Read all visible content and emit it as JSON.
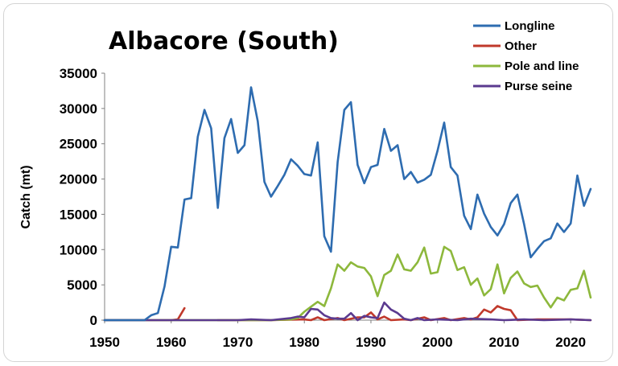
{
  "chart_data": {
    "type": "line",
    "title": "Albacore (South)",
    "xlabel": "",
    "ylabel": "Catch (mt)",
    "xlim": [
      1950,
      2023
    ],
    "ylim": [
      0,
      35000
    ],
    "x_ticks": [
      "1950",
      "1960",
      "1970",
      "1980",
      "1990",
      "2000",
      "2010",
      "2020"
    ],
    "y_ticks": [
      "0",
      "5000",
      "10000",
      "15000",
      "20000",
      "25000",
      "30000",
      "35000"
    ],
    "grid": false,
    "legend_position": "top-right",
    "series": [
      {
        "name": "Longline",
        "color": "#2e6cb0",
        "points": [
          [
            1950,
            0
          ],
          [
            1951,
            0
          ],
          [
            1952,
            0
          ],
          [
            1953,
            0
          ],
          [
            1954,
            0
          ],
          [
            1955,
            0
          ],
          [
            1956,
            0
          ],
          [
            1957,
            700
          ],
          [
            1958,
            1000
          ],
          [
            1959,
            4800
          ],
          [
            1960,
            10400
          ],
          [
            1961,
            10300
          ],
          [
            1962,
            17100
          ],
          [
            1963,
            17300
          ],
          [
            1964,
            26000
          ],
          [
            1965,
            29800
          ],
          [
            1966,
            27200
          ],
          [
            1967,
            15900
          ],
          [
            1968,
            25800
          ],
          [
            1969,
            28500
          ],
          [
            1970,
            23700
          ],
          [
            1971,
            24800
          ],
          [
            1972,
            33000
          ],
          [
            1973,
            28200
          ],
          [
            1974,
            19600
          ],
          [
            1975,
            17500
          ],
          [
            1976,
            19000
          ],
          [
            1977,
            20600
          ],
          [
            1978,
            22800
          ],
          [
            1979,
            21900
          ],
          [
            1980,
            20700
          ],
          [
            1981,
            20500
          ],
          [
            1982,
            25200
          ],
          [
            1983,
            11900
          ],
          [
            1984,
            9700
          ],
          [
            1985,
            22400
          ],
          [
            1986,
            29800
          ],
          [
            1987,
            30900
          ],
          [
            1988,
            22000
          ],
          [
            1989,
            19400
          ],
          [
            1990,
            21700
          ],
          [
            1991,
            22000
          ],
          [
            1992,
            27100
          ],
          [
            1993,
            24000
          ],
          [
            1994,
            24800
          ],
          [
            1995,
            20000
          ],
          [
            1996,
            21000
          ],
          [
            1997,
            19500
          ],
          [
            1998,
            19900
          ],
          [
            1999,
            20600
          ],
          [
            2000,
            24000
          ],
          [
            2001,
            28000
          ],
          [
            2002,
            21700
          ],
          [
            2003,
            20500
          ],
          [
            2004,
            14800
          ],
          [
            2005,
            12900
          ],
          [
            2006,
            17800
          ],
          [
            2007,
            15100
          ],
          [
            2008,
            13200
          ],
          [
            2009,
            12000
          ],
          [
            2010,
            13600
          ],
          [
            2011,
            16600
          ],
          [
            2012,
            17800
          ],
          [
            2013,
            13600
          ],
          [
            2014,
            8900
          ],
          [
            2015,
            10100
          ],
          [
            2016,
            11200
          ],
          [
            2017,
            11600
          ],
          [
            2018,
            13700
          ],
          [
            2019,
            12500
          ],
          [
            2020,
            13700
          ],
          [
            2021,
            20500
          ],
          [
            2022,
            16200
          ],
          [
            2023,
            18600
          ]
        ]
      },
      {
        "name": "Other",
        "color": "#c0392b",
        "segments": [
          [
            [
              1950,
              0
            ],
            [
              1955,
              0
            ],
            [
              1960,
              0
            ],
            [
              1961,
              100
            ],
            [
              1962,
              1700
            ]
          ],
          [
            [
              1967,
              0
            ],
            [
              1975,
              0
            ],
            [
              1980,
              100
            ],
            [
              1981,
              0
            ],
            [
              1982,
              400
            ],
            [
              1983,
              0
            ],
            [
              1985,
              300
            ],
            [
              1986,
              0
            ],
            [
              1988,
              400
            ],
            [
              1989,
              400
            ],
            [
              1990,
              1100
            ],
            [
              1991,
              100
            ],
            [
              1992,
              500
            ],
            [
              1993,
              0
            ],
            [
              1995,
              100
            ],
            [
              1996,
              0
            ],
            [
              1998,
              400
            ],
            [
              1999,
              0
            ],
            [
              2001,
              300
            ],
            [
              2002,
              0
            ],
            [
              2004,
              300
            ],
            [
              2005,
              100
            ],
            [
              2006,
              400
            ],
            [
              2007,
              1500
            ],
            [
              2008,
              1100
            ],
            [
              2009,
              2000
            ],
            [
              2010,
              1600
            ],
            [
              2011,
              1400
            ],
            [
              2012,
              0
            ],
            [
              2015,
              100
            ],
            [
              2020,
              100
            ],
            [
              2023,
              0
            ]
          ]
        ]
      },
      {
        "name": "Pole and line",
        "color": "#8db83c",
        "points": [
          [
            1950,
            0
          ],
          [
            1960,
            0
          ],
          [
            1970,
            0
          ],
          [
            1975,
            0
          ],
          [
            1978,
            100
          ],
          [
            1979,
            300
          ],
          [
            1980,
            1200
          ],
          [
            1981,
            1900
          ],
          [
            1982,
            2600
          ],
          [
            1983,
            2000
          ],
          [
            1984,
            4500
          ],
          [
            1985,
            7900
          ],
          [
            1986,
            7000
          ],
          [
            1987,
            8200
          ],
          [
            1988,
            7600
          ],
          [
            1989,
            7400
          ],
          [
            1990,
            6200
          ],
          [
            1991,
            3400
          ],
          [
            1992,
            6400
          ],
          [
            1993,
            7000
          ],
          [
            1994,
            9300
          ],
          [
            1995,
            7200
          ],
          [
            1996,
            7000
          ],
          [
            1997,
            8200
          ],
          [
            1998,
            10300
          ],
          [
            1999,
            6600
          ],
          [
            2000,
            6800
          ],
          [
            2001,
            10400
          ],
          [
            2002,
            9800
          ],
          [
            2003,
            7100
          ],
          [
            2004,
            7500
          ],
          [
            2005,
            5000
          ],
          [
            2006,
            5900
          ],
          [
            2007,
            3500
          ],
          [
            2008,
            4400
          ],
          [
            2009,
            7900
          ],
          [
            2010,
            3800
          ],
          [
            2011,
            6000
          ],
          [
            2012,
            6900
          ],
          [
            2013,
            5200
          ],
          [
            2014,
            4700
          ],
          [
            2015,
            4900
          ],
          [
            2016,
            3200
          ],
          [
            2017,
            1800
          ],
          [
            2018,
            3200
          ],
          [
            2019,
            2800
          ],
          [
            2020,
            4300
          ],
          [
            2021,
            4500
          ],
          [
            2022,
            7000
          ],
          [
            2023,
            3200
          ]
        ]
      },
      {
        "name": "Purse seine",
        "color": "#5b3a8f",
        "points": [
          [
            1950,
            0
          ],
          [
            1960,
            0
          ],
          [
            1970,
            0
          ],
          [
            1972,
            100
          ],
          [
            1975,
            0
          ],
          [
            1978,
            300
          ],
          [
            1979,
            500
          ],
          [
            1980,
            400
          ],
          [
            1981,
            1600
          ],
          [
            1982,
            1500
          ],
          [
            1983,
            700
          ],
          [
            1984,
            300
          ],
          [
            1985,
            200
          ],
          [
            1986,
            200
          ],
          [
            1987,
            1000
          ],
          [
            1988,
            0
          ],
          [
            1989,
            600
          ],
          [
            1990,
            400
          ],
          [
            1991,
            300
          ],
          [
            1992,
            2500
          ],
          [
            1993,
            1500
          ],
          [
            1994,
            1000
          ],
          [
            1995,
            200
          ],
          [
            1996,
            0
          ],
          [
            1997,
            300
          ],
          [
            1998,
            0
          ],
          [
            2000,
            100
          ],
          [
            2003,
            0
          ],
          [
            2005,
            200
          ],
          [
            2008,
            100
          ],
          [
            2010,
            0
          ],
          [
            2013,
            100
          ],
          [
            2016,
            0
          ],
          [
            2020,
            100
          ],
          [
            2023,
            0
          ]
        ]
      }
    ]
  }
}
